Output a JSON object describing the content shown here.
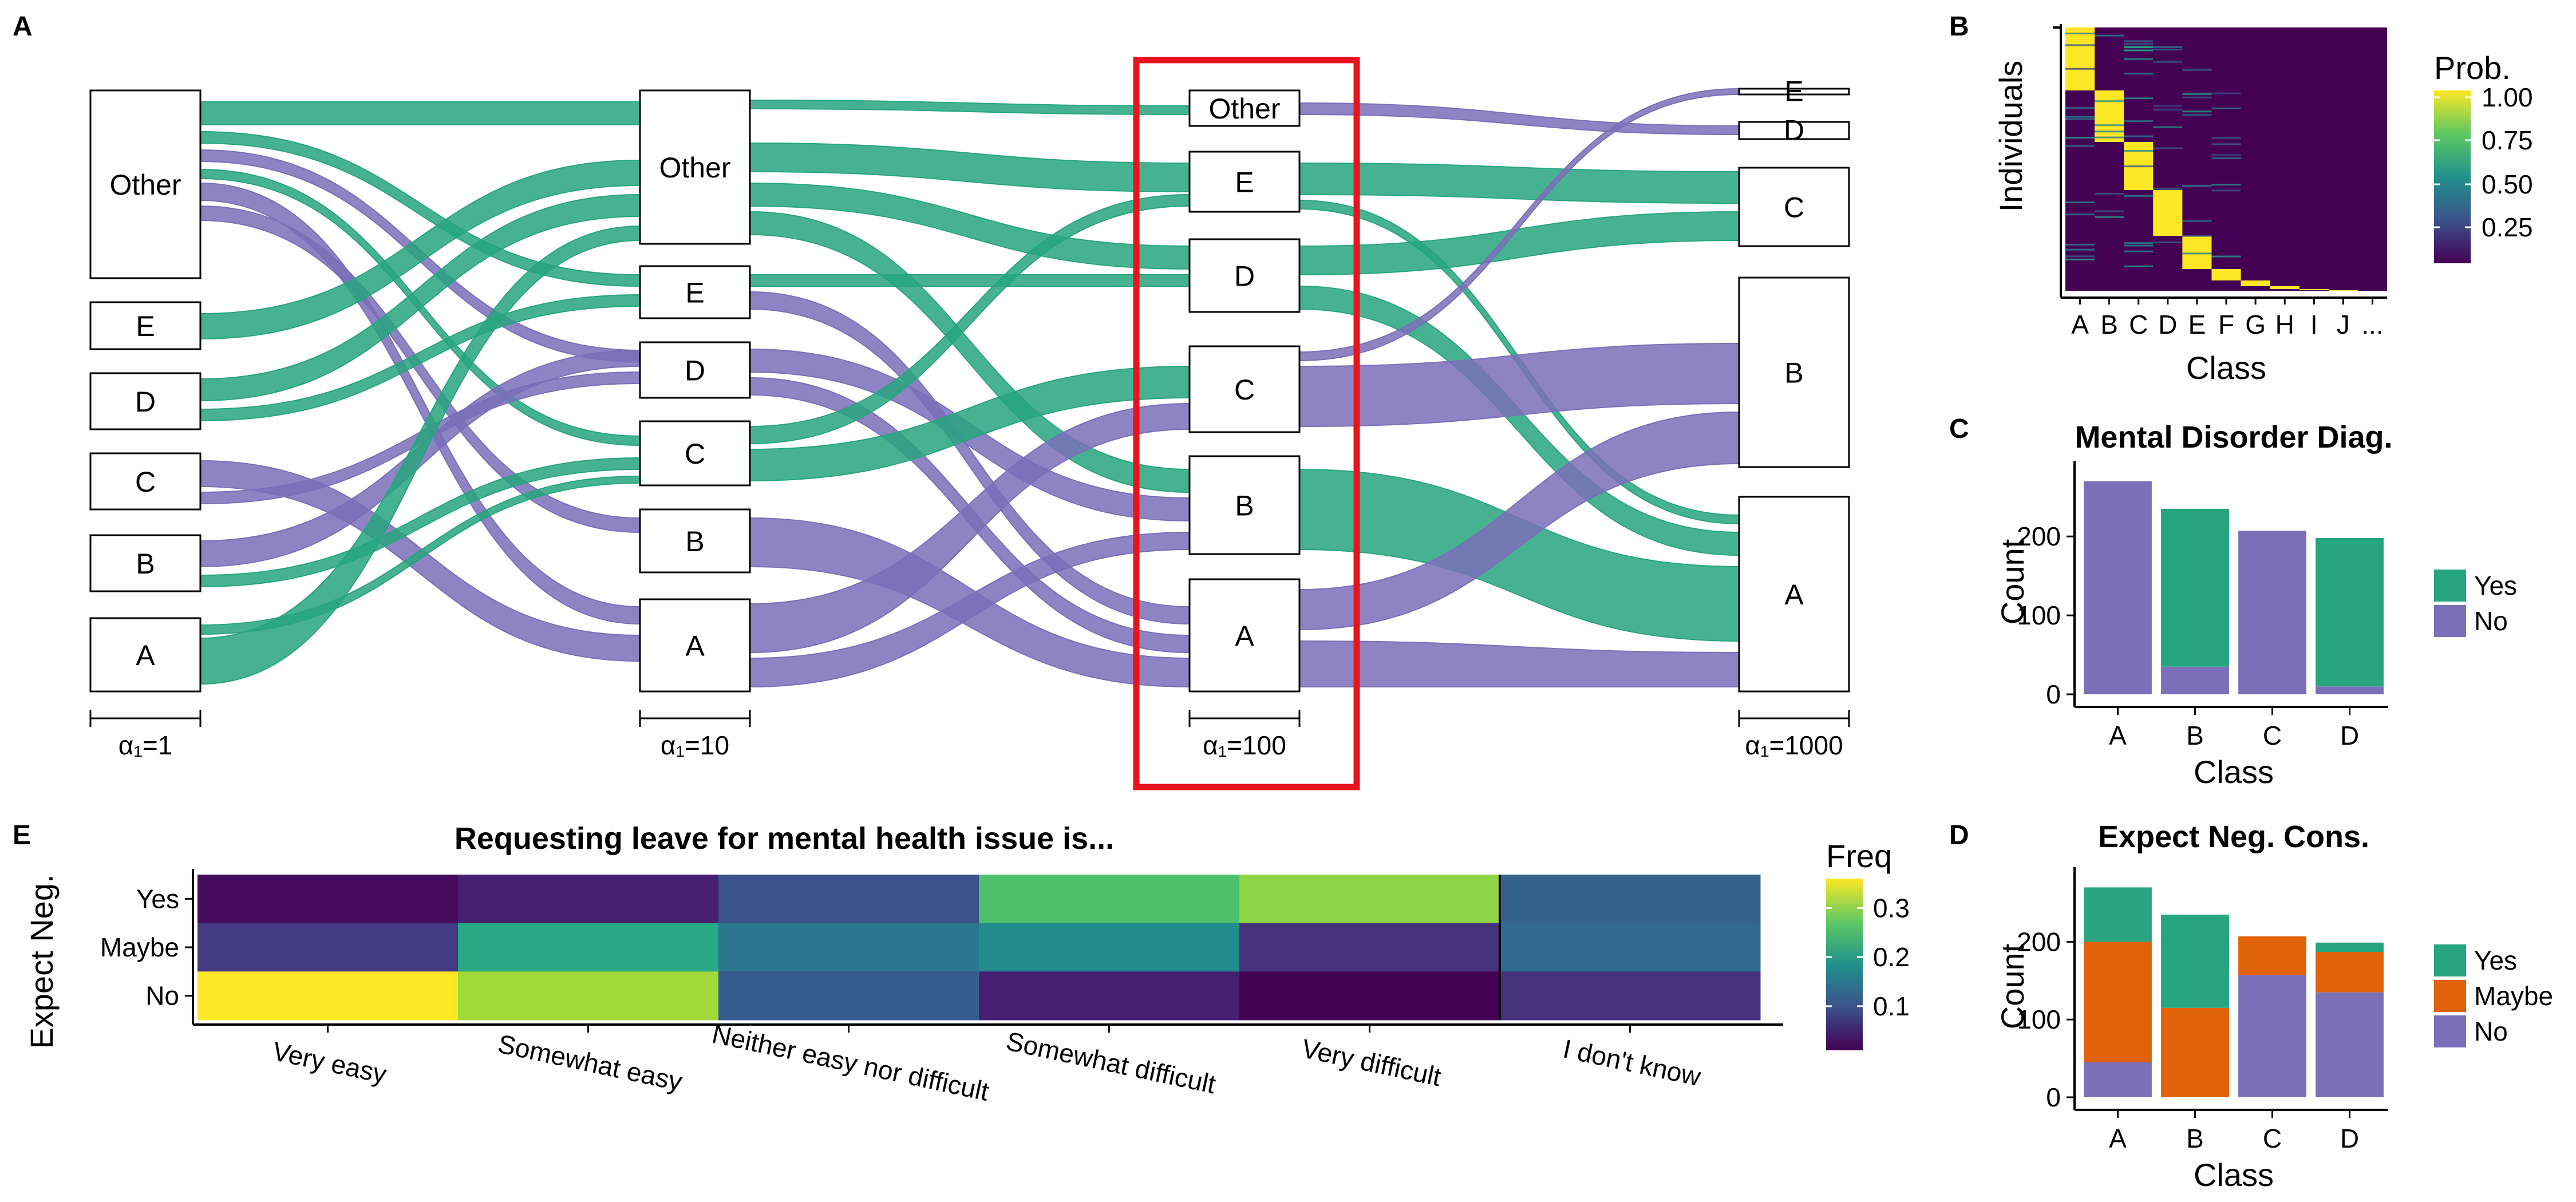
{
  "panels": {
    "a": "A",
    "b": "B",
    "c": "C",
    "d": "D",
    "e": "E"
  },
  "colors": {
    "yes": "#27A57E",
    "maybe": "#E0620B",
    "no": "#7A6FB8",
    "highlight": "#E8141C"
  },
  "alluvial": {
    "columns": [
      {
        "label": "α₁=1",
        "nodes": [
          "Other",
          "E",
          "D",
          "C",
          "B",
          "A"
        ]
      },
      {
        "label": "α₁=10",
        "nodes": [
          "Other",
          "E",
          "D",
          "C",
          "B",
          "A"
        ]
      },
      {
        "label": "α₁=100",
        "nodes": [
          "Other",
          "E",
          "D",
          "C",
          "B",
          "A"
        ]
      },
      {
        "label": "α₁=1000",
        "nodes": [
          "E",
          "D",
          "C",
          "B",
          "A"
        ]
      }
    ],
    "highlighted_column": "α₁=100"
  },
  "heatmap_b": {
    "ylabel": "Individuals",
    "xlabel": "Class",
    "classes": [
      "A",
      "B",
      "C",
      "D",
      "E",
      "F",
      "G",
      "H",
      "I",
      "J",
      "..."
    ],
    "legend_title": "Prob.",
    "legend_ticks": [
      "1.00",
      "0.75",
      "0.50",
      "0.25"
    ]
  },
  "chart_data": [
    {
      "type": "bar",
      "title": "Mental Disorder Diag.",
      "xlabel": "Class",
      "ylabel": "Count",
      "categories": [
        "A",
        "B",
        "C",
        "D"
      ],
      "series": [
        {
          "name": "Yes",
          "values": [
            0,
            200,
            0,
            188
          ]
        },
        {
          "name": "No",
          "values": [
            270,
            35,
            207,
            10
          ]
        }
      ],
      "ylim": [
        0,
        285
      ],
      "yticks": [
        "0",
        "100",
        "200"
      ],
      "legend": "right"
    },
    {
      "type": "bar",
      "title": "Expect Neg. Cons.",
      "xlabel": "Class",
      "ylabel": "Count",
      "categories": [
        "A",
        "B",
        "C",
        "D"
      ],
      "series": [
        {
          "name": "Yes",
          "values": [
            70,
            120,
            0,
            12
          ]
        },
        {
          "name": "Maybe",
          "values": [
            155,
            115,
            50,
            52
          ]
        },
        {
          "name": "No",
          "values": [
            45,
            0,
            157,
            135
          ]
        }
      ],
      "ylim": [
        0,
        285
      ],
      "yticks": [
        "0",
        "100",
        "200"
      ],
      "legend": "right"
    },
    {
      "type": "heatmap",
      "title": "Requesting leave for mental health issue is...",
      "ylabel": "Expect Neg.",
      "x": [
        "Very easy",
        "Somewhat easy",
        "Neither easy nor difficult",
        "Somewhat difficult",
        "Very difficult",
        "I don't know"
      ],
      "y": [
        "Yes",
        "Maybe",
        "No"
      ],
      "values": [
        [
          0.02,
          0.04,
          0.1,
          0.26,
          0.3,
          0.12
        ],
        [
          0.07,
          0.22,
          0.15,
          0.18,
          0.06,
          0.13
        ],
        [
          0.36,
          0.31,
          0.11,
          0.04,
          0.01,
          0.06
        ]
      ],
      "legend_title": "Freq",
      "legend_ticks": [
        "0.3",
        "0.2",
        "0.1"
      ]
    }
  ]
}
